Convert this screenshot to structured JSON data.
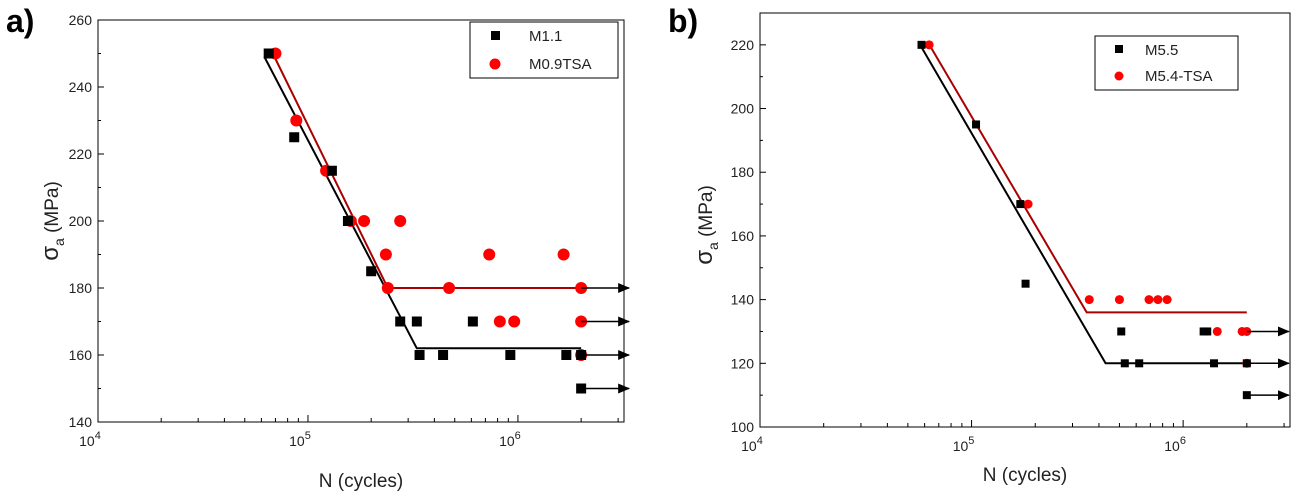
{
  "chart_data": [
    {
      "type": "scatter",
      "panel_label": "a)",
      "xlabel": "N (cycles)",
      "ylabel_symbol": "σ",
      "ylabel_subscript": "a",
      "ylabel_unit": " (MPa)",
      "xscale": "log",
      "xlim": [
        10000,
        3200000
      ],
      "ylim": [
        140,
        260
      ],
      "yticks": [
        140,
        160,
        180,
        200,
        220,
        240,
        260
      ],
      "xticks": [
        {
          "value": 10000,
          "base": "10",
          "exp": "4"
        },
        {
          "value": 100000,
          "base": "10",
          "exp": "5"
        },
        {
          "value": 1000000,
          "base": "10",
          "exp": "6"
        }
      ],
      "grid": false,
      "legend_position": "top-right",
      "series": [
        {
          "name": "M1.1",
          "marker": "square",
          "color": "#000000",
          "x": [
            65000,
            86000,
            130000,
            155000,
            200000,
            275000,
            330000,
            340000,
            440000,
            610000,
            920000,
            1700000,
            2000000,
            2000000
          ],
          "y": [
            250,
            225,
            215,
            200,
            185,
            170,
            170,
            160,
            160,
            170,
            160,
            160,
            160,
            150
          ]
        },
        {
          "name": "M0.9TSA",
          "marker": "circle",
          "color": "#ff0000",
          "x": [
            70000,
            88000,
            122000,
            160000,
            185000,
            235000,
            240000,
            275000,
            470000,
            730000,
            820000,
            960000,
            1650000,
            2000000,
            2000000,
            2000000
          ],
          "y": [
            250,
            230,
            215,
            200,
            200,
            190,
            180,
            200,
            180,
            190,
            170,
            170,
            190,
            180,
            170,
            160
          ]
        }
      ],
      "fit_lines": [
        {
          "color": "#000000",
          "x": [
            62000,
            330000,
            2000000
          ],
          "y": [
            249,
            162,
            162
          ]
        },
        {
          "color": "#aa0000",
          "x": [
            68000,
            240000,
            2000000
          ],
          "y": [
            250,
            180,
            180
          ]
        }
      ],
      "runout_arrows": [
        {
          "x": 2000000,
          "y": 180
        },
        {
          "x": 2000000,
          "y": 170
        },
        {
          "x": 2000000,
          "y": 160
        },
        {
          "x": 2000000,
          "y": 150
        }
      ]
    },
    {
      "type": "scatter",
      "panel_label": "b)",
      "xlabel": "N (cycles)",
      "ylabel_symbol": "σ",
      "ylabel_subscript": "a",
      "ylabel_unit": " (MPa)",
      "xscale": "log",
      "xlim": [
        10000,
        3200000
      ],
      "ylim": [
        100,
        230
      ],
      "yticks": [
        100,
        120,
        140,
        160,
        180,
        200,
        220
      ],
      "xticks": [
        {
          "value": 10000,
          "base": "10",
          "exp": "4"
        },
        {
          "value": 100000,
          "base": "10",
          "exp": "5"
        },
        {
          "value": 1000000,
          "base": "10",
          "exp": "6"
        }
      ],
      "grid": false,
      "legend_position": "top-right",
      "series": [
        {
          "name": "M5.5",
          "marker": "square",
          "color": "#000000",
          "x": [
            58000,
            105000,
            170000,
            180000,
            510000,
            530000,
            620000,
            1250000,
            1300000,
            1400000,
            2000000,
            2000000
          ],
          "y": [
            220,
            195,
            170,
            145,
            130,
            120,
            120,
            130,
            130,
            120,
            120,
            110
          ]
        },
        {
          "name": "M5.4-TSA",
          "marker": "circle",
          "color": "#ff0000",
          "x": [
            63000,
            185000,
            360000,
            500000,
            690000,
            760000,
            840000,
            1450000,
            1900000,
            2000000,
            2000000
          ],
          "y": [
            220,
            170,
            140,
            140,
            140,
            140,
            140,
            130,
            130,
            130,
            120
          ]
        }
      ],
      "fit_lines": [
        {
          "color": "#000000",
          "x": [
            56000,
            430000,
            2000000
          ],
          "y": [
            221,
            120,
            120
          ]
        },
        {
          "color": "#aa0000",
          "x": [
            62000,
            350000,
            2000000
          ],
          "y": [
            221,
            136,
            136
          ]
        }
      ],
      "runout_arrows": [
        {
          "x": 2000000,
          "y": 130
        },
        {
          "x": 2000000,
          "y": 120
        },
        {
          "x": 2000000,
          "y": 110
        }
      ]
    }
  ]
}
